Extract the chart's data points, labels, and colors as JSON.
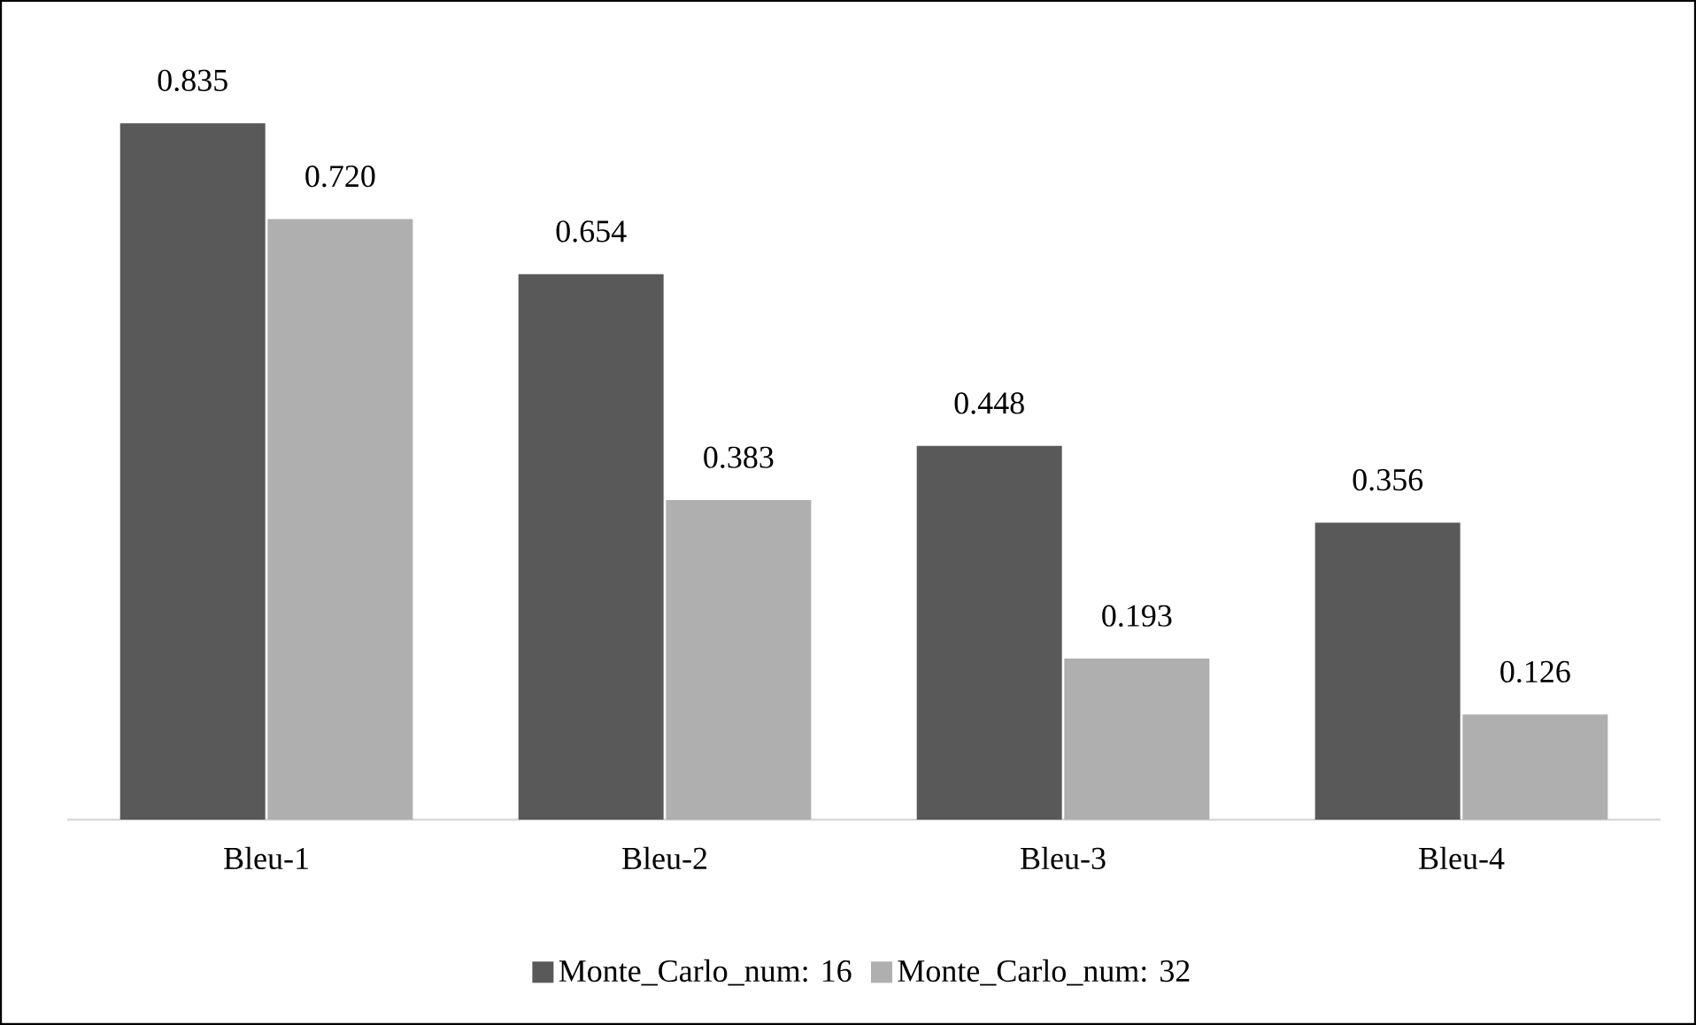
{
  "chart_data": {
    "type": "bar",
    "categories": [
      "Bleu-1",
      "Bleu-2",
      "Bleu-3",
      "Bleu-4"
    ],
    "series": [
      {
        "name": "Monte_Carlo_num: 16",
        "color": "#595959",
        "values": [
          0.835,
          0.654,
          0.448,
          0.356
        ],
        "value_labels": [
          "0.835",
          "0.654",
          "0.448",
          "0.356"
        ]
      },
      {
        "name": "Monte_Carlo_num: 32",
        "color": "#afafaf",
        "values": [
          0.72,
          0.383,
          0.193,
          0.126
        ],
        "value_labels": [
          "0.720",
          "0.383",
          "0.193",
          "0.126"
        ]
      }
    ],
    "legend": "bottom"
  }
}
